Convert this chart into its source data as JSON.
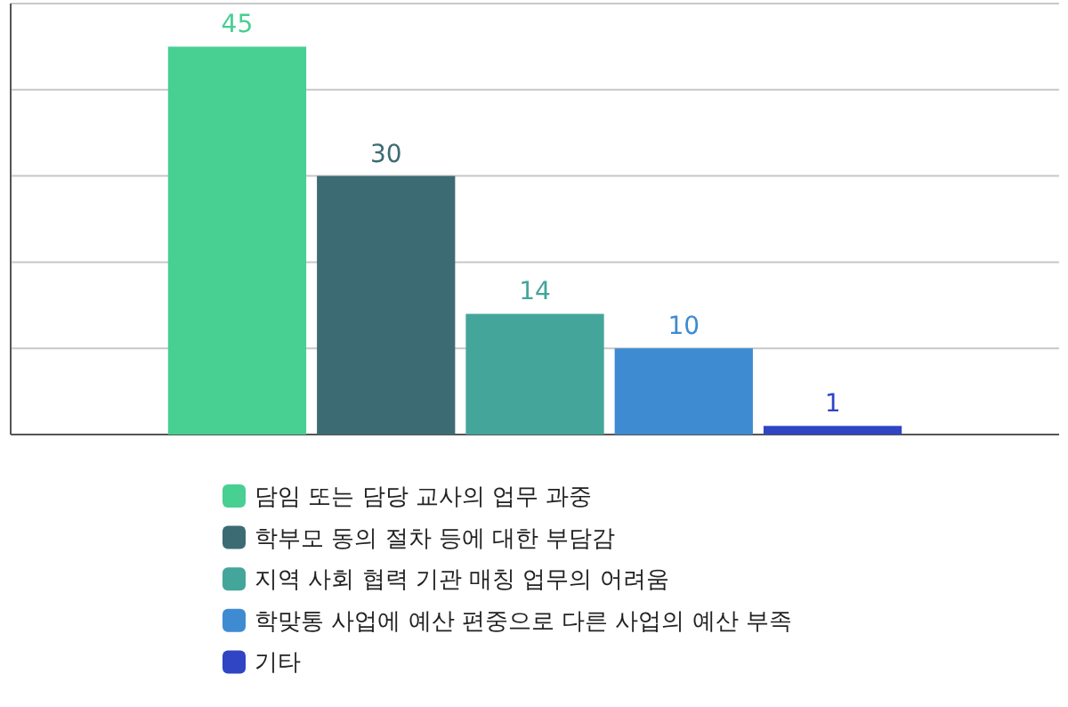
{
  "chart_data": {
    "type": "bar",
    "categories": [
      null
    ],
    "series": [
      {
        "name": "담임 또는 담당 교사의 업무 과중",
        "color": "#48cf92",
        "values": [
          45
        ]
      },
      {
        "name": "학부모 동의 절차 등에 대한 부담감",
        "color": "#3d6b74",
        "values": [
          30
        ]
      },
      {
        "name": "지역 사회 협력 기관 매칭 업무의 어려움",
        "color": "#44a59a",
        "values": [
          14
        ]
      },
      {
        "name": "학맞통 사업에 예산 편중으로 다른 사업의 예산 부족",
        "color": "#3e8bd2",
        "values": [
          10
        ]
      },
      {
        "name": "기타",
        "color": "#2f45c4",
        "values": [
          1
        ]
      }
    ],
    "ylim": [
      0,
      50
    ],
    "yticks": [
      0,
      10,
      20,
      30,
      40,
      50
    ],
    "tick_labels": false,
    "grid": "y",
    "legend": "bottom",
    "data_labels": true
  }
}
